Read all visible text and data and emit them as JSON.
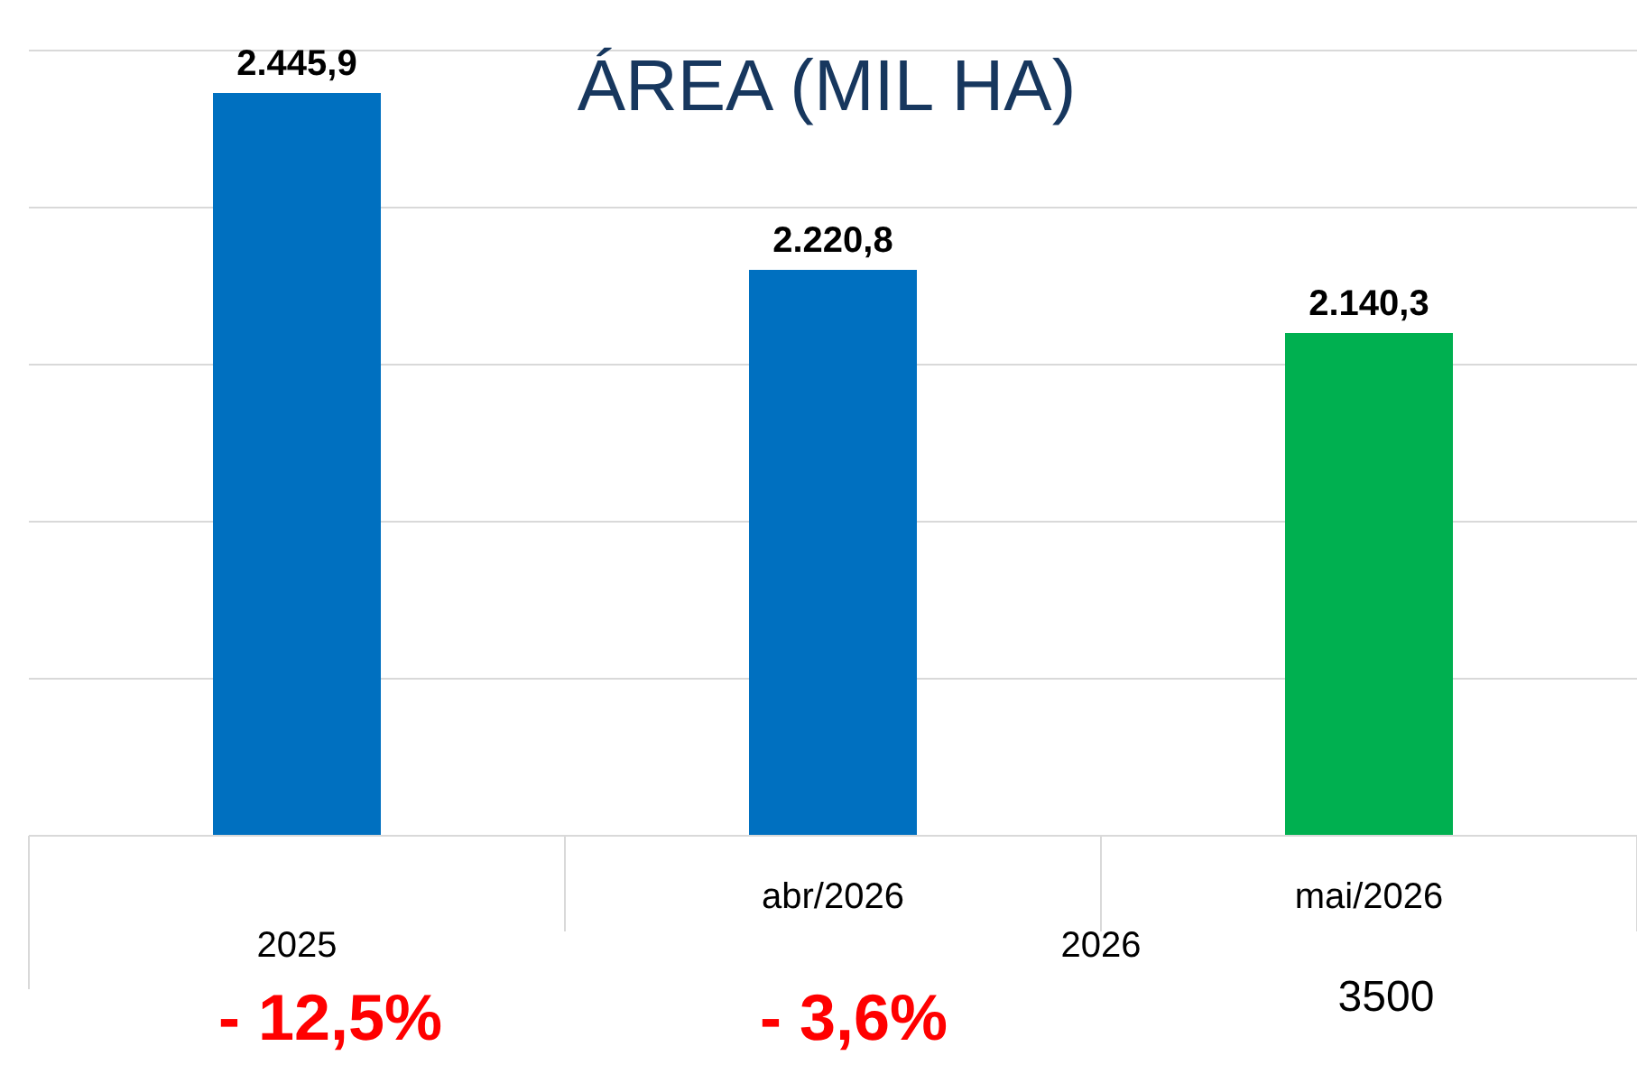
{
  "chart_data": {
    "type": "bar",
    "title": "ÁREA (MIL HA)",
    "categories": [
      null,
      "abr/2026",
      "mai/2026"
    ],
    "values": [
      2445.9,
      2220.8,
      2140.3
    ],
    "colors": [
      "#0070c0",
      "#0070c0",
      "#00b050"
    ],
    "value_labels": [
      "2.445,9",
      "2.220,8",
      "2.140,3"
    ],
    "ylim": [
      1500,
      2500
    ],
    "tick_labels": "x",
    "grid": "y",
    "annotations": [
      "2025",
      "2026",
      "- 12,5%",
      "- 3,6%",
      "3500"
    ]
  }
}
